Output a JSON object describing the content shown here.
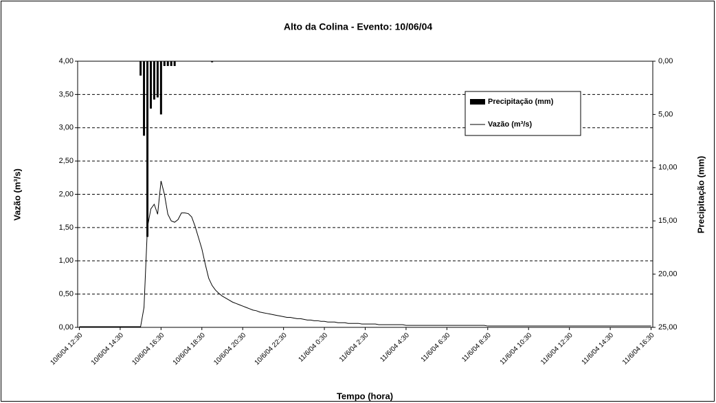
{
  "chart_data": {
    "type": "combo",
    "title": "Alto da Colina - Evento: 10/06/04",
    "x_label": "Tempo (hora)",
    "y_label": "Vazão (m³/s)",
    "y2_label": "Precipitação (mm)",
    "categories": [
      "10/6/04 12:30",
      null,
      null,
      null,
      null,
      null,
      null,
      null,
      null,
      null,
      null,
      null,
      "10/6/04 14:30",
      null,
      null,
      null,
      null,
      null,
      null,
      null,
      null,
      null,
      null,
      null,
      "10/6/04 16:30",
      null,
      null,
      null,
      null,
      null,
      null,
      null,
      null,
      null,
      null,
      null,
      "10/6/04 18:30",
      null,
      null,
      null,
      null,
      null,
      null,
      null,
      null,
      null,
      null,
      null,
      "10/6/04 20:30",
      null,
      null,
      null,
      null,
      null,
      null,
      null,
      null,
      null,
      null,
      null,
      "10/6/04 22:30",
      null,
      null,
      null,
      null,
      null,
      null,
      null,
      null,
      null,
      null,
      null,
      "11/6/04 0:30",
      null,
      null,
      null,
      null,
      null,
      null,
      null,
      null,
      null,
      null,
      null,
      "11/6/04 2:30",
      null,
      null,
      null,
      null,
      null,
      null,
      null,
      null,
      null,
      null,
      null,
      "11/6/04 4:30",
      null,
      null,
      null,
      null,
      null,
      null,
      null,
      null,
      null,
      null,
      null,
      "11/6/04 6:30",
      null,
      null,
      null,
      null,
      null,
      null,
      null,
      null,
      null,
      null,
      null,
      "11/6/04 8:30",
      null,
      null,
      null,
      null,
      null,
      null,
      null,
      null,
      null,
      null,
      null,
      "11/6/04 10:30",
      null,
      null,
      null,
      null,
      null,
      null,
      null,
      null,
      null,
      null,
      null,
      "11/6/04 12:30",
      null,
      null,
      null,
      null,
      null,
      null,
      null,
      null,
      null,
      null,
      null,
      "11/6/04 14:30",
      null,
      null,
      null,
      null,
      null,
      null,
      null,
      null,
      null,
      null,
      null,
      "11/6/04 16:30"
    ],
    "series": [
      {
        "name": "Precipitação (mm)",
        "type": "bar",
        "axis": "y2",
        "color": "#000000",
        "values": [
          0,
          0,
          0,
          0,
          0,
          0,
          0,
          0,
          0,
          0,
          0,
          0,
          0,
          0,
          0,
          0,
          0,
          0,
          1.35,
          7.0,
          16.5,
          4.45,
          3.6,
          3.4,
          5.0,
          0.45,
          0.45,
          0.45,
          0.45,
          0,
          0,
          0,
          0,
          0,
          0,
          0,
          0,
          0,
          0,
          0.1,
          0,
          0,
          0,
          0,
          0,
          0,
          0,
          0,
          0,
          0,
          0,
          0,
          0,
          0,
          0,
          0,
          0,
          0,
          0,
          0,
          0,
          0,
          0,
          0,
          0,
          0,
          0,
          0,
          0,
          0,
          0,
          0,
          0,
          0,
          0,
          0,
          0,
          0,
          0,
          0,
          0,
          0,
          0,
          0,
          0,
          0,
          0,
          0,
          0,
          0,
          0,
          0,
          0,
          0,
          0,
          0,
          0,
          0,
          0,
          0,
          0,
          0,
          0,
          0,
          0,
          0,
          0,
          0,
          0,
          0,
          0,
          0,
          0,
          0,
          0,
          0,
          0,
          0,
          0,
          0,
          0,
          0,
          0,
          0,
          0,
          0,
          0,
          0,
          0,
          0,
          0,
          0,
          0,
          0,
          0,
          0,
          0,
          0,
          0,
          0,
          0,
          0,
          0,
          0,
          0,
          0,
          0,
          0,
          0,
          0,
          0,
          0,
          0,
          0,
          0,
          0,
          0,
          0,
          0,
          0,
          0,
          0,
          0,
          0,
          0,
          0,
          0,
          0,
          0
        ]
      },
      {
        "name": "Vazão (m³/s)",
        "type": "line",
        "color": "#000000",
        "values": [
          0.01,
          0.01,
          0.01,
          0.01,
          0.01,
          0.01,
          0.01,
          0.01,
          0.01,
          0.01,
          0.01,
          0.01,
          0.01,
          0.01,
          0.01,
          0.01,
          0.01,
          0.01,
          0.01,
          0.3,
          1.5,
          1.78,
          1.85,
          1.7,
          2.2,
          2.0,
          1.7,
          1.6,
          1.58,
          1.62,
          1.72,
          1.72,
          1.71,
          1.66,
          1.52,
          1.35,
          1.18,
          0.95,
          0.74,
          0.63,
          0.56,
          0.51,
          0.47,
          0.44,
          0.41,
          0.38,
          0.36,
          0.34,
          0.32,
          0.3,
          0.28,
          0.26,
          0.25,
          0.23,
          0.22,
          0.21,
          0.2,
          0.19,
          0.18,
          0.17,
          0.16,
          0.15,
          0.15,
          0.14,
          0.13,
          0.13,
          0.12,
          0.11,
          0.11,
          0.1,
          0.1,
          0.09,
          0.09,
          0.08,
          0.08,
          0.08,
          0.07,
          0.07,
          0.07,
          0.06,
          0.06,
          0.06,
          0.06,
          0.05,
          0.05,
          0.05,
          0.05,
          0.05,
          0.04,
          0.04,
          0.04,
          0.04,
          0.04,
          0.04,
          0.04,
          0.04,
          0.03,
          0.03,
          0.03,
          0.03,
          0.03,
          0.03,
          0.03,
          0.03,
          0.03,
          0.03,
          0.03,
          0.03,
          0.03,
          0.03,
          0.03,
          0.03,
          0.03,
          0.03,
          0.03,
          0.03,
          0.03,
          0.03,
          0.03,
          0.03,
          0.02,
          0.02,
          0.02,
          0.02,
          0.02,
          0.02,
          0.02,
          0.02,
          0.02,
          0.02,
          0.02,
          0.02,
          0.02,
          0.02,
          0.02,
          0.02,
          0.02,
          0.02,
          0.02,
          0.02,
          0.02,
          0.02,
          0.02,
          0.02,
          0.02,
          0.02,
          0.02,
          0.02,
          0.02,
          0.02,
          0.02,
          0.02,
          0.02,
          0.02,
          0.02,
          0.02,
          0.02,
          0.02,
          0.02,
          0.02,
          0.02,
          0.02,
          0.02,
          0.02,
          0.02,
          0.02,
          0.02,
          0.02,
          0.02
        ]
      }
    ],
    "ylim": [
      0,
      4
    ],
    "yticks": [
      {
        "value": 0,
        "label": "0,00"
      },
      {
        "value": 0.5,
        "label": "0,50"
      },
      {
        "value": 1,
        "label": "1,00"
      },
      {
        "value": 1.5,
        "label": "1,50"
      },
      {
        "value": 2,
        "label": "2,00"
      },
      {
        "value": 2.5,
        "label": "2,50"
      },
      {
        "value": 3,
        "label": "3,00"
      },
      {
        "value": 3.5,
        "label": "3,50"
      },
      {
        "value": 4,
        "label": "4,00"
      }
    ],
    "y2lim": [
      0,
      25
    ],
    "y2_inverted": true,
    "y2ticks": [
      {
        "value": 0,
        "label": "0,00"
      },
      {
        "value": 5,
        "label": "5,00"
      },
      {
        "value": 10,
        "label": "10,00"
      },
      {
        "value": 15,
        "label": "15,00"
      },
      {
        "value": 20,
        "label": "20,00"
      },
      {
        "value": 25,
        "label": "25,00"
      }
    ],
    "grid": true,
    "legend": "upper right"
  }
}
